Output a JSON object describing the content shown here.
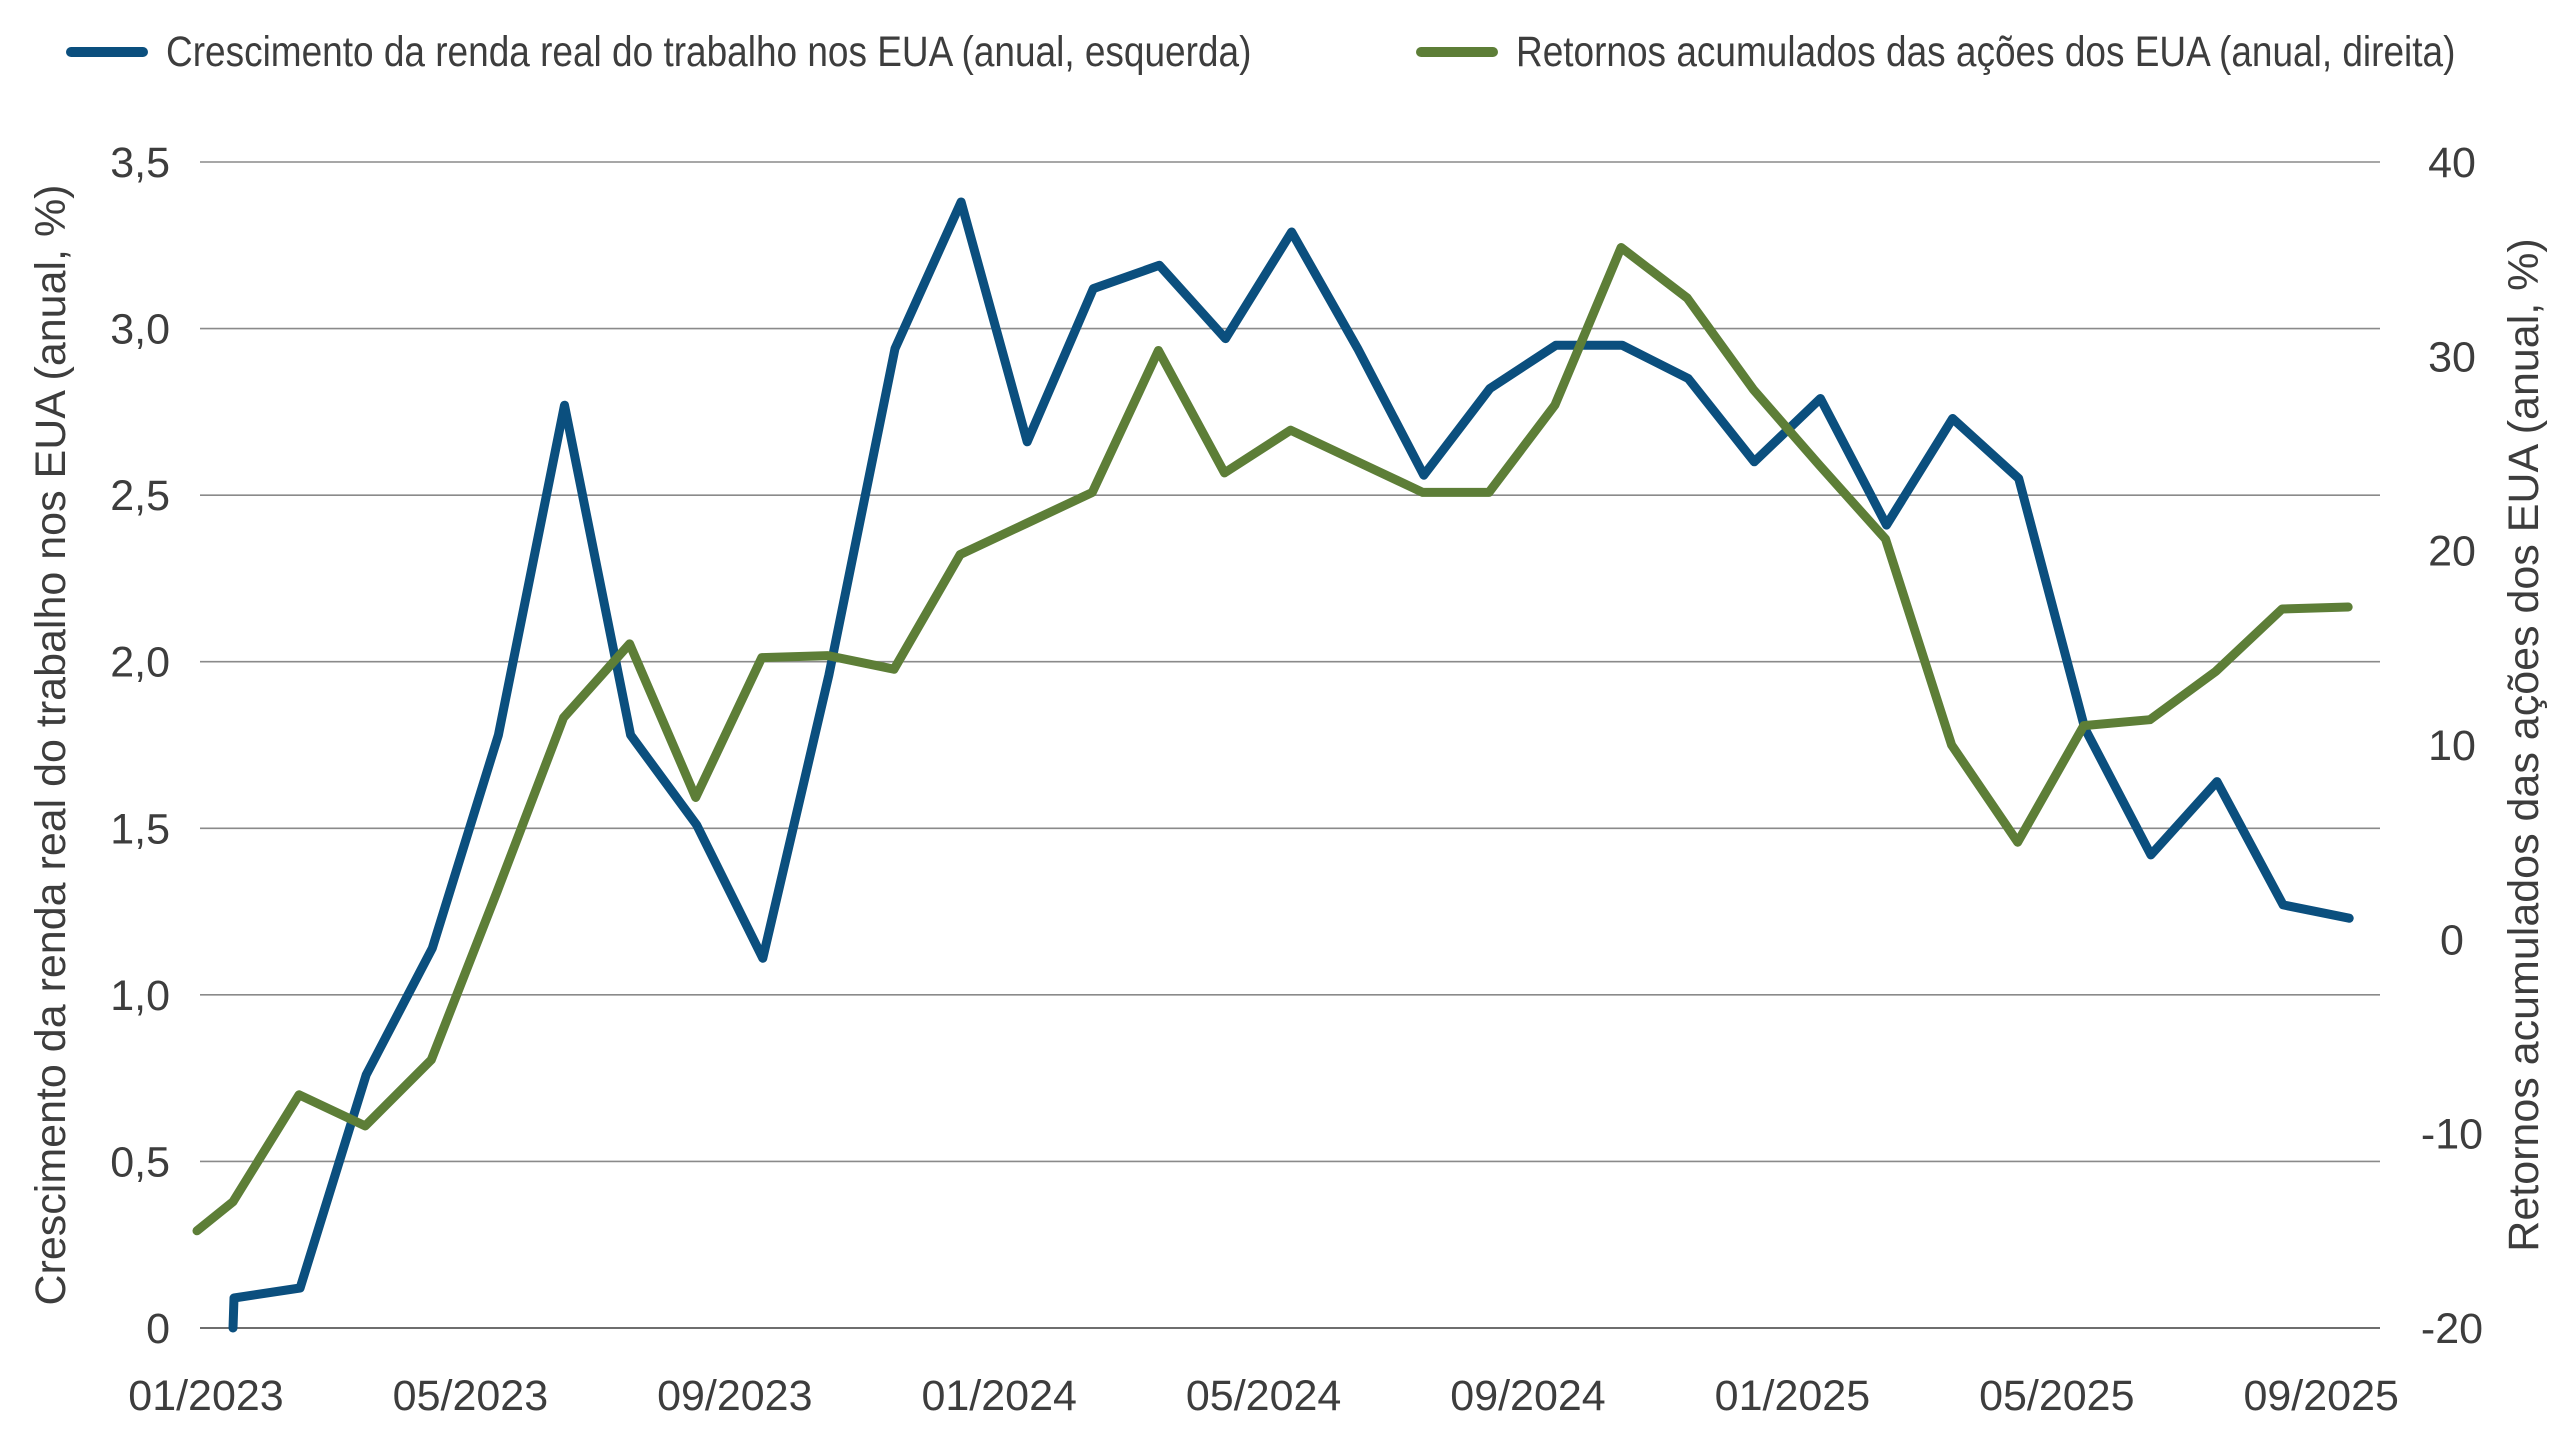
{
  "chart_data": {
    "type": "line",
    "x": [
      "01/2023",
      "02/2023",
      "03/2023",
      "04/2023",
      "05/2023",
      "06/2023",
      "07/2023",
      "08/2023",
      "09/2023",
      "10/2023",
      "11/2023",
      "12/2023",
      "01/2024",
      "02/2024",
      "03/2024",
      "04/2024",
      "05/2024",
      "06/2024",
      "07/2024",
      "08/2024",
      "09/2024",
      "10/2024",
      "11/2024",
      "12/2024",
      "01/2025",
      "02/2025",
      "03/2025",
      "04/2025",
      "05/2025",
      "06/2025",
      "07/2025",
      "08/2025",
      "09/2025"
    ],
    "xticks": [
      "01/2023",
      "05/2023",
      "09/2023",
      "01/2024",
      "05/2024",
      "09/2024",
      "01/2025",
      "05/2025",
      "09/2025"
    ],
    "series": [
      {
        "name": "Crescimento da renda real do trabalho nos EUA (anual, esquerda)",
        "axis": "left",
        "color": "#0b4f7e",
        "values": [
          0.09,
          0.12,
          0.76,
          1.14,
          1.78,
          2.77,
          1.78,
          1.51,
          1.11,
          1.96,
          2.94,
          3.38,
          2.66,
          3.12,
          3.19,
          2.97,
          3.29,
          2.94,
          2.56,
          2.82,
          2.95,
          2.95,
          2.85,
          2.6,
          2.79,
          2.41,
          2.73,
          2.55,
          1.8,
          1.42,
          1.64,
          1.27,
          1.23
        ]
      },
      {
        "name": "Retornos acumulados das ações dos EUA (anual, direita)",
        "axis": "right",
        "color": "#5d7e37",
        "values": [
          -13.5,
          -8.0,
          -9.6,
          -6.2,
          2.5,
          11.4,
          15.2,
          7.3,
          14.5,
          14.6,
          13.9,
          19.8,
          21.4,
          23.0,
          30.3,
          24.0,
          26.2,
          24.6,
          23.0,
          23.0,
          27.5,
          35.6,
          33.0,
          28.3,
          24.4,
          20.6,
          10.0,
          5.0,
          11.0,
          11.3,
          13.8,
          17.0,
          17.1
        ]
      }
    ],
    "x_first_value_left": 0,
    "ylabel_left": "Crescimento da renda real do trabalho nos EUA (anual, %)",
    "ylabel_right": "Retornos acumulados das ações dos EUA (anual, %)",
    "ylim_left": [
      0,
      3.5
    ],
    "ylim_right": [
      -20,
      40
    ],
    "yticks_left": [
      "0",
      "0,5",
      "1,0",
      "1,5",
      "2,0",
      "2,5",
      "3,0",
      "3,5"
    ],
    "yticks_right": [
      "-20",
      "-10",
      "0",
      "10",
      "20",
      "30",
      "40"
    ],
    "right_series_start": -15.0,
    "grid": true,
    "legend_position": "top"
  }
}
